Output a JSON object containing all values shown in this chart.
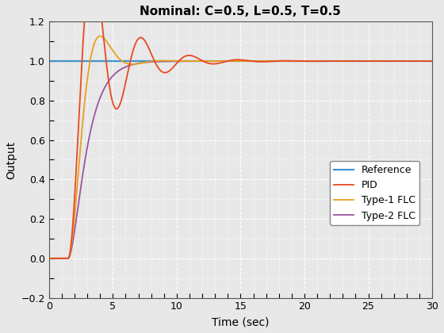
{
  "title": "Nominal: C=0.5, L=0.5, T=0.5",
  "xlabel": "Time (sec)",
  "ylabel": "Output",
  "xlim": [
    0,
    30
  ],
  "ylim": [
    -0.2,
    1.2
  ],
  "xticks": [
    0,
    5,
    10,
    15,
    20,
    25,
    30
  ],
  "yticks": [
    -0.2,
    0.0,
    0.2,
    0.4,
    0.6,
    0.8,
    1.0,
    1.2
  ],
  "colors": {
    "reference": "#4393c9",
    "pid": "#e8491f",
    "type1": "#e8a020",
    "type2": "#9b55a0"
  },
  "legend_labels": [
    "Reference",
    "PID",
    "Type-1 FLC",
    "Type-2 FLC"
  ],
  "bg_color": "#e8e8e8",
  "plot_bg_color": "#e8e8e8",
  "grid_color": "#ffffff",
  "title_fontsize": 11,
  "label_fontsize": 10,
  "tick_fontsize": 9,
  "legend_fontsize": 9,
  "line_width": 1.3,
  "delay": 1.5
}
